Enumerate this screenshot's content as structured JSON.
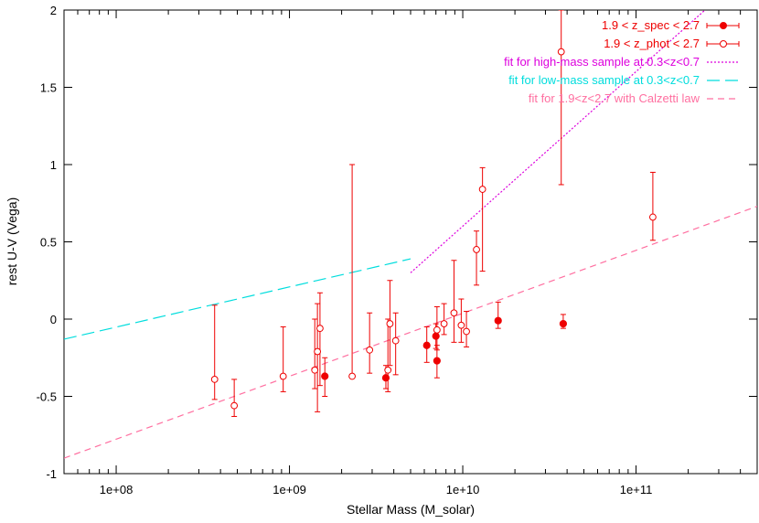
{
  "chart_data": {
    "type": "scatter",
    "title": "",
    "xlabel": "Stellar Mass (M_solar)",
    "ylabel": "rest U-V (Vega)",
    "xscale": "log",
    "xlim": [
      50000000,
      500000000000
    ],
    "ylim": [
      -1,
      2
    ],
    "grid": false,
    "legend_position": "top-right",
    "x_ticks": [
      {
        "value": 100000000,
        "label": "1e+08"
      },
      {
        "value": 1000000000,
        "label": "1e+09"
      },
      {
        "value": 10000000000,
        "label": "1e+10"
      },
      {
        "value": 100000000000,
        "label": "1e+11"
      }
    ],
    "y_ticks": [
      {
        "value": -1,
        "label": "-1"
      },
      {
        "value": -0.5,
        "label": "-0.5"
      },
      {
        "value": 0,
        "label": "0"
      },
      {
        "value": 0.5,
        "label": "0.5"
      },
      {
        "value": 1,
        "label": "1"
      },
      {
        "value": 1.5,
        "label": "1.5"
      },
      {
        "value": 2,
        "label": "2"
      }
    ],
    "series": [
      {
        "name": "1.9 < z_spec < 2.7",
        "marker": "filled-circle",
        "color": "#ee0000",
        "points": [
          {
            "x": 1600000000,
            "y": -0.37,
            "ylo": -0.5,
            "yhi": -0.25
          },
          {
            "x": 3600000000,
            "y": -0.38,
            "ylo": -0.45,
            "yhi": -0.3
          },
          {
            "x": 6200000000,
            "y": -0.17,
            "ylo": -0.28,
            "yhi": -0.05
          },
          {
            "x": 7000000000,
            "y": -0.11,
            "ylo": -0.19,
            "yhi": -0.03
          },
          {
            "x": 7100000000,
            "y": -0.27,
            "ylo": -0.38,
            "yhi": -0.17
          },
          {
            "x": 16000000000,
            "y": -0.01,
            "ylo": -0.06,
            "yhi": 0.11
          },
          {
            "x": 38000000000,
            "y": -0.03,
            "ylo": -0.06,
            "yhi": 0.03
          }
        ]
      },
      {
        "name": "1.9 < z_phot < 2.7",
        "marker": "open-circle",
        "color": "#ee0000",
        "points": [
          {
            "x": 370000000,
            "y": -0.39,
            "ylo": -0.52,
            "yhi": 0.09
          },
          {
            "x": 480000000,
            "y": -0.56,
            "ylo": -0.63,
            "yhi": -0.39
          },
          {
            "x": 920000000,
            "y": -0.37,
            "ylo": -0.47,
            "yhi": -0.05
          },
          {
            "x": 1400000000,
            "y": -0.33,
            "ylo": -0.45,
            "yhi": 0.0
          },
          {
            "x": 1450000000,
            "y": -0.21,
            "ylo": -0.6,
            "yhi": 0.1
          },
          {
            "x": 1500000000,
            "y": -0.06,
            "ylo": -0.43,
            "yhi": 0.17
          },
          {
            "x": 2300000000,
            "y": -0.37,
            "ylo": -0.37,
            "yhi": 1.0
          },
          {
            "x": 2900000000,
            "y": -0.2,
            "ylo": -0.35,
            "yhi": 0.04
          },
          {
            "x": 3700000000,
            "y": -0.33,
            "ylo": -0.47,
            "yhi": 0.0
          },
          {
            "x": 3800000000,
            "y": -0.03,
            "ylo": -0.3,
            "yhi": 0.25
          },
          {
            "x": 4100000000,
            "y": -0.14,
            "ylo": -0.36,
            "yhi": 0.04
          },
          {
            "x": 7100000000,
            "y": -0.07,
            "ylo": -0.2,
            "yhi": 0.08
          },
          {
            "x": 7800000000,
            "y": -0.03,
            "ylo": -0.1,
            "yhi": 0.1
          },
          {
            "x": 8900000000,
            "y": 0.04,
            "ylo": -0.15,
            "yhi": 0.38
          },
          {
            "x": 9800000000,
            "y": -0.04,
            "ylo": -0.15,
            "yhi": 0.13
          },
          {
            "x": 10500000000,
            "y": -0.08,
            "ylo": -0.18,
            "yhi": 0.05
          },
          {
            "x": 12000000000,
            "y": 0.45,
            "ylo": 0.22,
            "yhi": 0.57
          },
          {
            "x": 13000000000,
            "y": 0.84,
            "ylo": 0.31,
            "yhi": 0.98
          },
          {
            "x": 37000000000,
            "y": 1.73,
            "ylo": 0.87,
            "yhi": 2.0
          },
          {
            "x": 125000000000,
            "y": 0.66,
            "ylo": 0.51,
            "yhi": 0.95
          }
        ]
      }
    ],
    "fit_lines": [
      {
        "name": "fit for high-mass sample at 0.3<z<0.7",
        "color": "#dd00dd",
        "dash": "dotted",
        "x": [
          5000000000,
          250000000000
        ],
        "y": [
          0.3,
          2.0
        ]
      },
      {
        "name": "fit for low-mass sample at 0.3<z<0.7",
        "color": "#00dddd",
        "dash": "long-dash",
        "x": [
          50000000,
          5000000000
        ],
        "y": [
          -0.13,
          0.39
        ]
      },
      {
        "name": "fit for 1.9<z<2.7 with Calzetti law",
        "color": "#ff6fa0",
        "dash": "short-dash",
        "x": [
          50000000,
          500000000000
        ],
        "y": [
          -0.9,
          0.73
        ]
      }
    ]
  }
}
